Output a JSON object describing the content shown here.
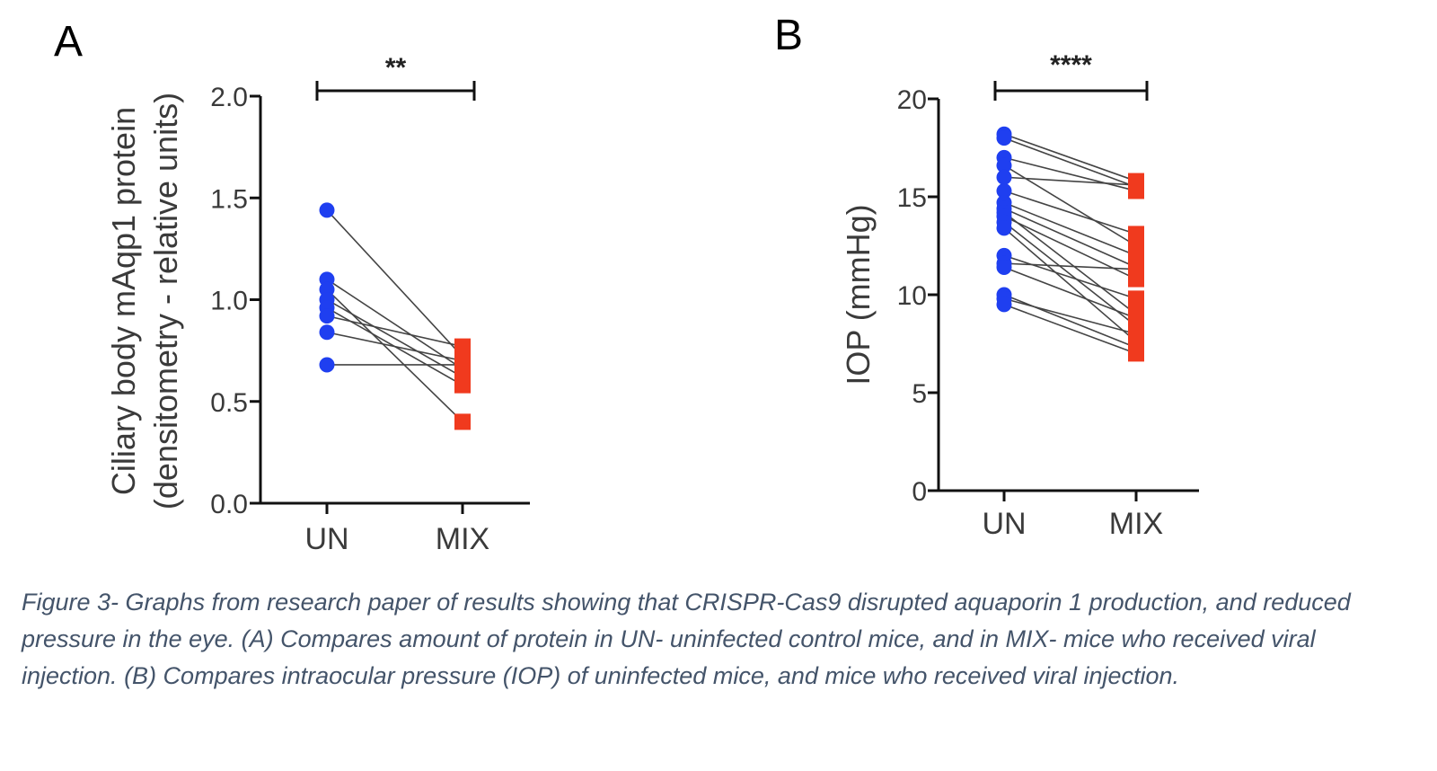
{
  "caption": "Figure 3- Graphs from research paper of results showing that CRISPR-Cas9 disrupted aquaporin 1 production, and reduced pressure in the eye. (A) Compares amount of protein in UN- uninfected control mice, and in MIX- mice who received viral injection. (B) Compares intraocular pressure (IOP) of uninfected mice, and mice who received viral injection.",
  "chart_data": [
    {
      "panel": "A",
      "type": "scatter",
      "style": "paired before-after",
      "categories": [
        "UN",
        "MIX"
      ],
      "ylabel_line1": "Ciliary body mAqp1 protein",
      "ylabel_line2": "(densitometry - relative units)",
      "ylim": [
        0,
        2.0
      ],
      "yticks": [
        0.0,
        0.5,
        1.0,
        1.5,
        2.0
      ],
      "ytick_labels": [
        "0.0",
        "0.5",
        "1.0",
        "1.5",
        "2.0"
      ],
      "significance": "**",
      "marker_colors": {
        "UN": "#1f3ff0",
        "MIX": "#f03a1e"
      },
      "pairs": [
        {
          "un": 1.44,
          "mix": 0.72
        },
        {
          "un": 1.1,
          "mix": 0.66
        },
        {
          "un": 1.05,
          "mix": 0.4
        },
        {
          "un": 1.0,
          "mix": 0.62
        },
        {
          "un": 0.96,
          "mix": 0.58
        },
        {
          "un": 0.92,
          "mix": 0.77
        },
        {
          "un": 0.84,
          "mix": 0.7
        },
        {
          "un": 0.68,
          "mix": 0.68
        }
      ]
    },
    {
      "panel": "B",
      "type": "scatter",
      "style": "paired before-after",
      "categories": [
        "UN",
        "MIX"
      ],
      "ylabel": "IOP (mmHg)",
      "ylim": [
        0,
        20
      ],
      "yticks": [
        0,
        5,
        10,
        15,
        20
      ],
      "ytick_labels": [
        "0",
        "5",
        "10",
        "15",
        "20"
      ],
      "significance": "****",
      "marker_colors": {
        "UN": "#1f3ff0",
        "MIX": "#f03a1e"
      },
      "pairs": [
        {
          "un": 18.2,
          "mix": 15.8
        },
        {
          "un": 18.0,
          "mix": 15.5
        },
        {
          "un": 17.0,
          "mix": 15.3
        },
        {
          "un": 16.6,
          "mix": 12.5
        },
        {
          "un": 16.0,
          "mix": 15.6
        },
        {
          "un": 15.3,
          "mix": 13.1
        },
        {
          "un": 14.7,
          "mix": 12.0
        },
        {
          "un": 14.4,
          "mix": 11.4
        },
        {
          "un": 14.2,
          "mix": 9.0
        },
        {
          "un": 14.0,
          "mix": 10.8
        },
        {
          "un": 13.7,
          "mix": 8.4
        },
        {
          "un": 13.4,
          "mix": 7.6
        },
        {
          "un": 12.0,
          "mix": 9.8
        },
        {
          "un": 11.6,
          "mix": 11.3
        },
        {
          "un": 11.4,
          "mix": 8.8
        },
        {
          "un": 10.0,
          "mix": 7.3
        },
        {
          "un": 9.8,
          "mix": 8.0
        },
        {
          "un": 9.5,
          "mix": 7.0
        }
      ]
    }
  ]
}
